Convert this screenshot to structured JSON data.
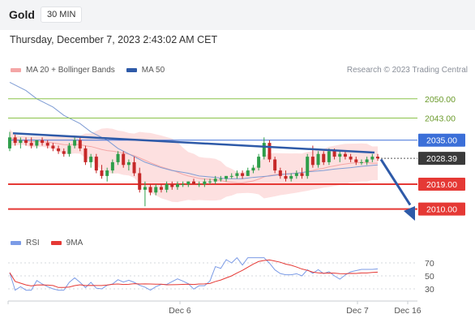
{
  "header": {
    "symbol": "Gold",
    "timeframe": "30 MIN"
  },
  "datetime": "Thursday, December 7, 2023 2:43:02 AM CET",
  "legend": {
    "items": [
      {
        "label": "MA 20 + Bollinger Bands",
        "color": "#f4a6a6"
      },
      {
        "label": "MA 50",
        "color": "#2e5aa8"
      }
    ],
    "credit": "Research © 2023 Trading Central"
  },
  "rsi_legend": {
    "items": [
      {
        "label": "RSI",
        "color": "#7b9be6"
      },
      {
        "label": "9MA",
        "color": "#e53935"
      }
    ]
  },
  "colors": {
    "support": "#e53935",
    "resistance_blue": "#3b6fd8",
    "target_green": "#8bc34a",
    "last_price_bg": "#3a3a3a",
    "bollinger_fill": "#fde0e0",
    "ma50": "#7f9cd4",
    "trend_arrow": "#2e5aa8"
  },
  "chart_data": [
    {
      "type": "line",
      "title": "Gold",
      "timeframe": "30 MIN",
      "xlabel": "",
      "ylabel": "",
      "x_ticks": [
        "Dec 6",
        "Dec 7",
        "Dec 16"
      ],
      "ylim": [
        2004,
        2057
      ],
      "price_levels": [
        {
          "value": 2050.0,
          "label": "2050.00",
          "kind": "resistance-target",
          "color": "#8bc34a"
        },
        {
          "value": 2043.0,
          "label": "2043.00",
          "kind": "resistance-target",
          "color": "#8bc34a"
        },
        {
          "value": 2035.0,
          "label": "2035.00",
          "kind": "pivot",
          "color": "#3b6fd8"
        },
        {
          "value": 2019.0,
          "label": "2019.00",
          "kind": "support",
          "color": "#e53935"
        },
        {
          "value": 2010.0,
          "label": "2010.00",
          "kind": "support",
          "color": "#e53935"
        }
      ],
      "last_price": {
        "value": 2028.39,
        "label": "2028.39"
      },
      "candles": [
        {
          "o": 2032,
          "h": 2038,
          "l": 2031,
          "c": 2036
        },
        {
          "o": 2036,
          "h": 2037,
          "l": 2033,
          "c": 2034
        },
        {
          "o": 2034,
          "h": 2036,
          "l": 2032,
          "c": 2035
        },
        {
          "o": 2035,
          "h": 2036,
          "l": 2033,
          "c": 2034
        },
        {
          "o": 2034,
          "h": 2036,
          "l": 2032,
          "c": 2033
        },
        {
          "o": 2033,
          "h": 2035,
          "l": 2032,
          "c": 2035
        },
        {
          "o": 2035,
          "h": 2036,
          "l": 2033,
          "c": 2034
        },
        {
          "o": 2034,
          "h": 2035,
          "l": 2032,
          "c": 2033
        },
        {
          "o": 2033,
          "h": 2034,
          "l": 2031,
          "c": 2032
        },
        {
          "o": 2032,
          "h": 2033,
          "l": 2030,
          "c": 2031
        },
        {
          "o": 2031,
          "h": 2032,
          "l": 2029,
          "c": 2030
        },
        {
          "o": 2030,
          "h": 2034,
          "l": 2029,
          "c": 2033
        },
        {
          "o": 2033,
          "h": 2036,
          "l": 2032,
          "c": 2035
        },
        {
          "o": 2035,
          "h": 2036,
          "l": 2031,
          "c": 2032
        },
        {
          "o": 2032,
          "h": 2033,
          "l": 2026,
          "c": 2027
        },
        {
          "o": 2027,
          "h": 2030,
          "l": 2025,
          "c": 2029
        },
        {
          "o": 2029,
          "h": 2030,
          "l": 2023,
          "c": 2024
        },
        {
          "o": 2024,
          "h": 2026,
          "l": 2021,
          "c": 2022
        },
        {
          "o": 2022,
          "h": 2025,
          "l": 2020,
          "c": 2024
        },
        {
          "o": 2024,
          "h": 2028,
          "l": 2023,
          "c": 2027
        },
        {
          "o": 2027,
          "h": 2031,
          "l": 2026,
          "c": 2030
        },
        {
          "o": 2030,
          "h": 2031,
          "l": 2025,
          "c": 2026
        },
        {
          "o": 2026,
          "h": 2028,
          "l": 2024,
          "c": 2027
        },
        {
          "o": 2027,
          "h": 2029,
          "l": 2022,
          "c": 2023
        },
        {
          "o": 2023,
          "h": 2025,
          "l": 2016,
          "c": 2017
        },
        {
          "o": 2017,
          "h": 2020,
          "l": 2011,
          "c": 2018
        },
        {
          "o": 2018,
          "h": 2019,
          "l": 2015,
          "c": 2016
        },
        {
          "o": 2016,
          "h": 2019,
          "l": 2015,
          "c": 2018
        },
        {
          "o": 2018,
          "h": 2019,
          "l": 2016,
          "c": 2017
        },
        {
          "o": 2017,
          "h": 2020,
          "l": 2016,
          "c": 2019
        },
        {
          "o": 2019,
          "h": 2020,
          "l": 2017,
          "c": 2018
        },
        {
          "o": 2018,
          "h": 2020,
          "l": 2017,
          "c": 2019
        },
        {
          "o": 2019,
          "h": 2020,
          "l": 2018,
          "c": 2019
        },
        {
          "o": 2019,
          "h": 2020,
          "l": 2018,
          "c": 2020
        },
        {
          "o": 2020,
          "h": 2021,
          "l": 2019,
          "c": 2019
        },
        {
          "o": 2019,
          "h": 2020,
          "l": 2018,
          "c": 2019
        },
        {
          "o": 2019,
          "h": 2021,
          "l": 2018,
          "c": 2020
        },
        {
          "o": 2020,
          "h": 2021,
          "l": 2019,
          "c": 2020
        },
        {
          "o": 2020,
          "h": 2022,
          "l": 2019,
          "c": 2021
        },
        {
          "o": 2021,
          "h": 2022,
          "l": 2020,
          "c": 2021
        },
        {
          "o": 2021,
          "h": 2022,
          "l": 2020,
          "c": 2022
        },
        {
          "o": 2022,
          "h": 2023,
          "l": 2021,
          "c": 2022
        },
        {
          "o": 2022,
          "h": 2024,
          "l": 2021,
          "c": 2023
        },
        {
          "o": 2023,
          "h": 2024,
          "l": 2021,
          "c": 2022
        },
        {
          "o": 2022,
          "h": 2025,
          "l": 2022,
          "c": 2024
        },
        {
          "o": 2024,
          "h": 2026,
          "l": 2023,
          "c": 2025
        },
        {
          "o": 2025,
          "h": 2030,
          "l": 2024,
          "c": 2029
        },
        {
          "o": 2029,
          "h": 2036,
          "l": 2028,
          "c": 2034
        },
        {
          "o": 2034,
          "h": 2035,
          "l": 2027,
          "c": 2028
        },
        {
          "o": 2028,
          "h": 2029,
          "l": 2023,
          "c": 2024
        },
        {
          "o": 2024,
          "h": 2025,
          "l": 2021,
          "c": 2022
        },
        {
          "o": 2022,
          "h": 2024,
          "l": 2020,
          "c": 2021
        },
        {
          "o": 2021,
          "h": 2023,
          "l": 2020,
          "c": 2022
        },
        {
          "o": 2022,
          "h": 2024,
          "l": 2021,
          "c": 2023
        },
        {
          "o": 2023,
          "h": 2025,
          "l": 2021,
          "c": 2022
        },
        {
          "o": 2022,
          "h": 2030,
          "l": 2021,
          "c": 2029
        },
        {
          "o": 2029,
          "h": 2033,
          "l": 2025,
          "c": 2026
        },
        {
          "o": 2026,
          "h": 2031,
          "l": 2025,
          "c": 2030
        },
        {
          "o": 2030,
          "h": 2031,
          "l": 2026,
          "c": 2027
        },
        {
          "o": 2027,
          "h": 2032,
          "l": 2026,
          "c": 2031
        },
        {
          "o": 2031,
          "h": 2032,
          "l": 2028,
          "c": 2029
        },
        {
          "o": 2029,
          "h": 2031,
          "l": 2027,
          "c": 2030
        },
        {
          "o": 2030,
          "h": 2031,
          "l": 2028,
          "c": 2029
        },
        {
          "o": 2029,
          "h": 2030,
          "l": 2027,
          "c": 2028
        },
        {
          "o": 2028,
          "h": 2029,
          "l": 2026,
          "c": 2027
        },
        {
          "o": 2027,
          "h": 2028,
          "l": 2026,
          "c": 2027
        },
        {
          "o": 2027,
          "h": 2029,
          "l": 2026,
          "c": 2028
        },
        {
          "o": 2028,
          "h": 2030,
          "l": 2027,
          "c": 2029
        },
        {
          "o": 2029,
          "h": 2030,
          "l": 2027.5,
          "c": 2028.39
        }
      ],
      "rsi_ylim": [
        20,
        80
      ],
      "rsi_ticks": [
        70,
        50,
        30
      ]
    }
  ]
}
